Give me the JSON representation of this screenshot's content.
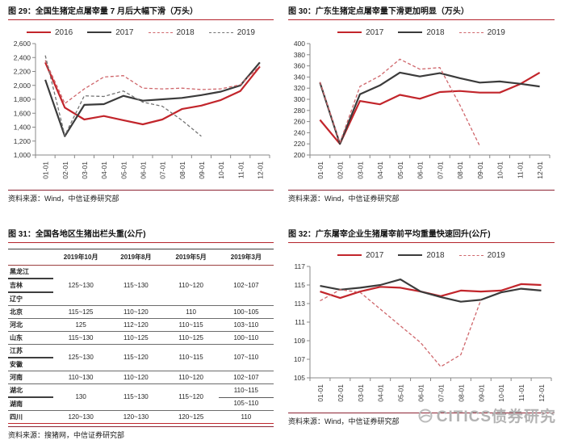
{
  "watermark": {
    "text": "CITICS债券研究"
  },
  "colors": {
    "accent_red": "#c2252b",
    "line_black": "#3b3b3b",
    "dash_red": "#cf666b",
    "dash_gray": "#737373",
    "title_rule": "#b5232b",
    "source_rule": "#8c2332",
    "table_bottom_red": "#c0272d",
    "watermark_gray": "#b3b3b3"
  },
  "chart_data": [
    {
      "id": "fig29",
      "type": "line",
      "title": "图 29：全国生猪定点屠宰量 7 月后大幅下滑（万头）",
      "source": "资料来源：Wind，中信证券研究部",
      "ylim": [
        1000,
        2600
      ],
      "ystep": 200,
      "comma": true,
      "grid": false,
      "legend_position": "top-center",
      "categories": [
        "01-01",
        "02-01",
        "03-01",
        "04-01",
        "05-01",
        "06-01",
        "07-01",
        "08-01",
        "09-01",
        "10-01",
        "11-01",
        "12-01"
      ],
      "series": [
        {
          "name": "2016",
          "color": "#c2252b",
          "dash": false,
          "values": [
            2330,
            1680,
            1510,
            1560,
            1500,
            1440,
            1510,
            1660,
            1710,
            1790,
            1920,
            2270
          ]
        },
        {
          "name": "2017",
          "color": "#3b3b3b",
          "dash": false,
          "values": [
            2080,
            1270,
            1720,
            1730,
            1850,
            1780,
            1800,
            1820,
            1860,
            1910,
            2000,
            2330
          ]
        },
        {
          "name": "2018",
          "color": "#cf666b",
          "dash": true,
          "values": [
            2360,
            1740,
            1950,
            2120,
            2140,
            1960,
            1950,
            1960,
            1940,
            1950,
            2010,
            2280
          ]
        },
        {
          "name": "2019",
          "color": "#737373",
          "dash": true,
          "values": [
            2430,
            1280,
            1850,
            1840,
            1920,
            1760,
            1700,
            1500,
            1270,
            null,
            null,
            null
          ]
        }
      ]
    },
    {
      "id": "fig30",
      "type": "line",
      "title": "图 30：广东生猪定点屠宰量下滑更加明显（万头）",
      "source": "资料来源：Wind，中信证券研究部",
      "ylim": [
        200,
        400
      ],
      "ystep": 20,
      "comma": false,
      "grid": false,
      "legend_position": "top-center",
      "categories": [
        "01-01",
        "02-01",
        "03-01",
        "04-01",
        "05-01",
        "06-01",
        "07-01",
        "08-01",
        "09-01",
        "10-01",
        "11-01",
        "12-01"
      ],
      "series": [
        {
          "name": "2017",
          "color": "#c2252b",
          "dash": false,
          "values": [
            263,
            220,
            297,
            291,
            308,
            301,
            313,
            315,
            312,
            312,
            327,
            348
          ]
        },
        {
          "name": "2018",
          "color": "#3b3b3b",
          "dash": false,
          "values": [
            330,
            220,
            309,
            325,
            348,
            341,
            347,
            338,
            330,
            332,
            328,
            323
          ]
        },
        {
          "name": "2019",
          "color": "#cf666b",
          "dash": true,
          "values": [
            331,
            222,
            323,
            342,
            372,
            354,
            357,
            290,
            216,
            null,
            null,
            null
          ]
        }
      ]
    },
    {
      "id": "fig31",
      "type": "table",
      "title": "图 31：全国各地区生猪出栏头重(公斤)",
      "source": "资料来源：搜猪网，中信证券研究部",
      "table": {
        "headers": [
          "2019年10月",
          "2019年8月",
          "2019年5月",
          "2019年3月"
        ],
        "groups": [
          {
            "names": [
              "黑龙江",
              "吉林",
              "辽宁"
            ],
            "values": [
              "125~130",
              "115~130",
              "110~120",
              "102~107"
            ]
          },
          {
            "names": [
              "北京"
            ],
            "values": [
              "115~125",
              "110~120",
              "110",
              "100~105"
            ]
          },
          {
            "names": [
              "河北"
            ],
            "values": [
              "125",
              "112~120",
              "110~115",
              "103~110"
            ]
          },
          {
            "names": [
              "山东"
            ],
            "values": [
              "115~130",
              "110~125",
              "110~125",
              "100~110"
            ]
          },
          {
            "names": [
              "江苏",
              "安徽"
            ],
            "values": [
              "125~130",
              "115~120",
              "110~115",
              "107~110"
            ]
          },
          {
            "names": [
              "河南"
            ],
            "values": [
              "110~130",
              "110~120",
              "110~120",
              "102~107"
            ]
          },
          {
            "names": [
              "湖北",
              "湖南"
            ],
            "values": [
              "130",
              "115~130",
              "115~120"
            ],
            "last_col": [
              "110~115",
              "105~110"
            ]
          },
          {
            "names": [
              "四川"
            ],
            "values": [
              "120~130",
              "120~130",
              "120~125",
              "110"
            ]
          }
        ]
      }
    },
    {
      "id": "fig32",
      "type": "line",
      "title": "图 32：广东屠宰企业生猪屠宰前平均重量快速回升(公斤)",
      "source": "资料来源：Wind，中信证券研究部",
      "ylim": [
        105,
        117
      ],
      "ystep": 2,
      "comma": false,
      "grid": false,
      "legend_position": "top-center",
      "categories": [
        "01-01",
        "02-01",
        "03-01",
        "04-01",
        "05-01",
        "06-01",
        "07-01",
        "08-01",
        "09-01",
        "10-01",
        "11-01",
        "12-01"
      ],
      "series": [
        {
          "name": "2017",
          "color": "#c2252b",
          "dash": false,
          "values": [
            114.3,
            113.6,
            114.3,
            114.8,
            114.7,
            114.3,
            113.8,
            114.4,
            114.3,
            114.4,
            115.1,
            115.0
          ]
        },
        {
          "name": "2018",
          "color": "#3b3b3b",
          "dash": false,
          "values": [
            114.9,
            114.5,
            114.7,
            115.0,
            115.6,
            114.3,
            113.7,
            113.2,
            113.4,
            114.2,
            114.6,
            114.4
          ]
        },
        {
          "name": "2019",
          "color": "#cf666b",
          "dash": true,
          "values": [
            113.3,
            114.5,
            114.2,
            112.4,
            110.6,
            108.8,
            106.2,
            107.5,
            113.4,
            null,
            null,
            null
          ]
        }
      ]
    }
  ]
}
